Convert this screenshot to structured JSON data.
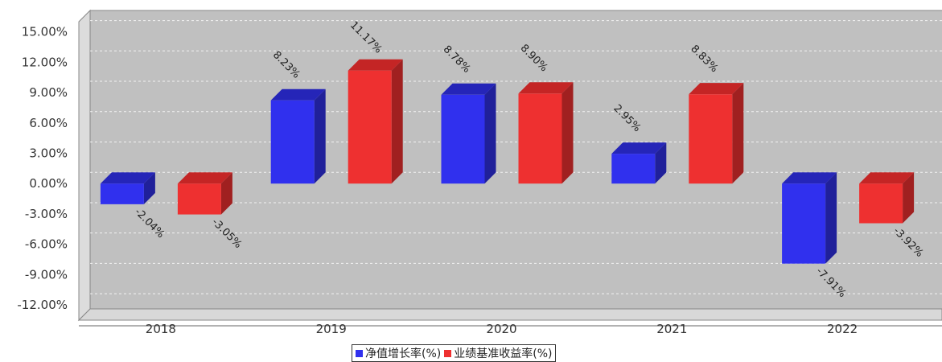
{
  "chart_data": {
    "type": "bar",
    "categories": [
      "2018",
      "2019",
      "2020",
      "2021",
      "2022"
    ],
    "series": [
      {
        "name": "净值增长率(%)",
        "color": "#3030ee",
        "values": [
          -2.04,
          8.23,
          8.78,
          2.95,
          -7.91
        ],
        "labels": [
          "-2.04%",
          "8.23%",
          "8.78%",
          "2.95%",
          "-7.91%"
        ]
      },
      {
        "name": "业绩基准收益率(%)",
        "color": "#ee3030",
        "values": [
          -3.05,
          11.17,
          8.9,
          8.83,
          -3.92
        ],
        "labels": [
          "-3.05%",
          "11.17%",
          "8.90%",
          "8.83%",
          "-3.92%"
        ]
      }
    ],
    "y_ticks": [
      "-12.00%",
      "-9.00%",
      "-6.00%",
      "-3.00%",
      "0.00%",
      "3.00%",
      "6.00%",
      "9.00%",
      "12.00%",
      "15.00%"
    ],
    "y_tick_values": [
      -12,
      -9,
      -6,
      -3,
      0,
      3,
      6,
      9,
      12,
      15
    ],
    "ylim": [
      -13.5,
      16
    ],
    "grid": true,
    "legend_position": "bottom-center",
    "plot_background": "#c0c0c0"
  }
}
